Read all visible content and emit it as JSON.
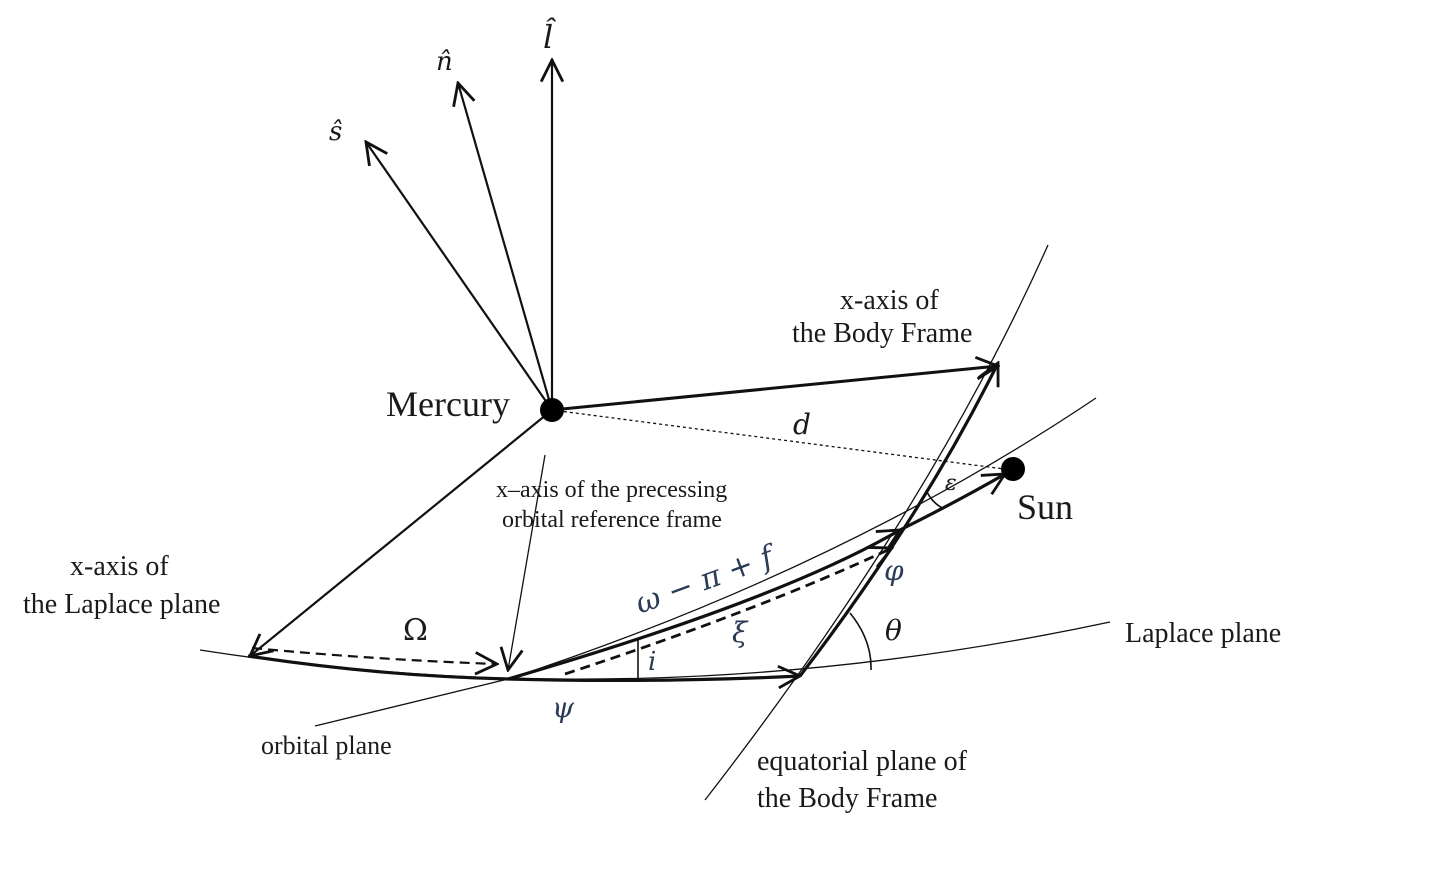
{
  "figure": {
    "vectors": {
      "l_hat": "l̂",
      "n_hat": "n̂",
      "s_hat": "ŝ"
    },
    "bodies": {
      "mercury": "Mercury",
      "sun": "Sun"
    },
    "labels": {
      "d": "d",
      "epsilon": "ε",
      "body_frame_x_line1": "x-axis of",
      "body_frame_x_line2": "the Body Frame",
      "precessing_x_line1": "x–axis of the precessing",
      "precessing_x_line2": "orbital reference frame",
      "laplace_x_line1": "x-axis of",
      "laplace_x_line2": "the Laplace plane",
      "omega_big": "Ω",
      "arc_omega_pi_f": "ω − π +  f",
      "phi": "φ",
      "theta": "θ",
      "xi": "ξ",
      "i": "i",
      "psi": "ψ",
      "laplace_plane": "Laplace plane",
      "orbital_plane": "orbital plane",
      "equatorial_line1": "equatorial  plane  of",
      "equatorial_line2": "the Body Frame"
    }
  }
}
